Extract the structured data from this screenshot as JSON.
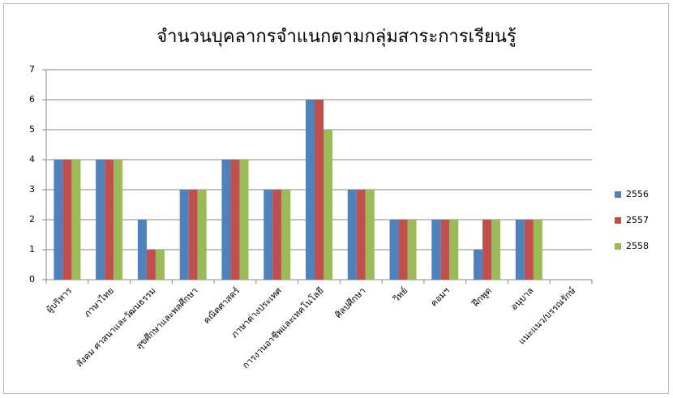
{
  "chart_data": {
    "type": "bar",
    "title": "จำนวนบุคลากรจำแนกตามกลุ่มสาระการเรียนรู้",
    "categories": [
      "ผู้บริหาร",
      "ภาษาไทย",
      "สังคม ศาสนาและวัฒนธรรม",
      "สุขศึกษาและพลศึกษา",
      "คณิตศาสตร์",
      "ภาษาต่างประเทศ",
      "การงานอาชีพและเทคโนโลยี",
      "ศิลปศึกษา",
      "วิทย์",
      "คอมฯ",
      "ฝึกพูด",
      "อนุบาล",
      "แนะแนว/บรรณรักษ์"
    ],
    "series": [
      {
        "name": "2556",
        "color": "#4f81bd",
        "values": [
          4,
          4,
          2,
          3,
          4,
          3,
          6,
          3,
          2,
          2,
          1,
          2,
          0
        ]
      },
      {
        "name": "2557",
        "color": "#c0504d",
        "values": [
          4,
          4,
          1,
          3,
          4,
          3,
          6,
          3,
          2,
          2,
          2,
          2,
          0
        ]
      },
      {
        "name": "2558",
        "color": "#9bbb59",
        "values": [
          4,
          4,
          1,
          3,
          4,
          3,
          5,
          3,
          2,
          2,
          2,
          2,
          0
        ]
      }
    ],
    "ylim": [
      0,
      7
    ],
    "yticks": [
      0,
      1,
      2,
      3,
      4,
      5,
      6,
      7
    ],
    "grid": true,
    "legend": "right"
  }
}
